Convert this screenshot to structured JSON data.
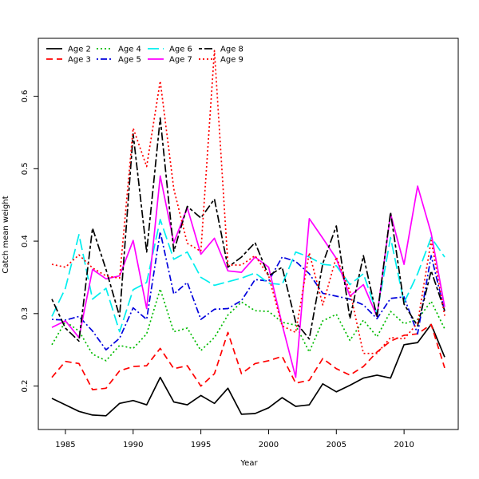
{
  "chart_data": {
    "type": "line",
    "title": "",
    "xlabel": "Year",
    "ylabel": "Catch mean weight",
    "xlim": [
      1983,
      2014
    ],
    "ylim": [
      0.14,
      0.68
    ],
    "xticks": [
      1985,
      1990,
      1995,
      2000,
      2005,
      2010
    ],
    "yticks": [
      0.2,
      0.3,
      0.4,
      0.5,
      0.6
    ],
    "legend_position": "top-left",
    "x": [
      1984,
      1985,
      1986,
      1987,
      1988,
      1989,
      1990,
      1991,
      1992,
      1993,
      1994,
      1995,
      1996,
      1997,
      1998,
      1999,
      2000,
      2001,
      2002,
      2003,
      2004,
      2005,
      2006,
      2007,
      2008,
      2009,
      2010,
      2011,
      2012,
      2013
    ],
    "series": [
      {
        "name": "Age 2",
        "color": "#000000",
        "dash": "solid",
        "values": [
          0.183,
          0.174,
          0.165,
          0.16,
          0.159,
          0.176,
          0.18,
          0.174,
          0.212,
          0.178,
          0.174,
          0.187,
          0.176,
          0.197,
          0.161,
          0.162,
          0.17,
          0.184,
          0.172,
          0.174,
          0.203,
          0.192,
          0.201,
          0.211,
          0.215,
          0.211,
          0.257,
          0.26,
          0.285,
          0.24
        ]
      },
      {
        "name": "Age 3",
        "color": "#ff0000",
        "dash": "dashed",
        "values": [
          0.212,
          0.234,
          0.231,
          0.195,
          0.197,
          0.221,
          0.227,
          0.228,
          0.252,
          0.224,
          0.228,
          0.2,
          0.217,
          0.274,
          0.217,
          0.231,
          0.235,
          0.241,
          0.204,
          0.208,
          0.238,
          0.224,
          0.215,
          0.227,
          0.247,
          0.262,
          0.27,
          0.272,
          0.285,
          0.225
        ]
      },
      {
        "name": "Age 4",
        "color": "#00bb00",
        "dash": "dotted",
        "values": [
          0.257,
          0.289,
          0.276,
          0.244,
          0.235,
          0.256,
          0.252,
          0.272,
          0.334,
          0.275,
          0.28,
          0.249,
          0.267,
          0.298,
          0.316,
          0.304,
          0.303,
          0.288,
          0.284,
          0.247,
          0.29,
          0.299,
          0.263,
          0.291,
          0.268,
          0.303,
          0.286,
          0.292,
          0.317,
          0.279
        ]
      },
      {
        "name": "Age 5",
        "color": "#0000dd",
        "dash": "dotdash",
        "values": [
          0.292,
          0.291,
          0.296,
          0.276,
          0.25,
          0.266,
          0.308,
          0.292,
          0.413,
          0.327,
          0.343,
          0.292,
          0.306,
          0.307,
          0.318,
          0.347,
          0.345,
          0.378,
          0.372,
          0.355,
          0.328,
          0.324,
          0.32,
          0.312,
          0.293,
          0.321,
          0.323,
          0.272,
          0.38,
          0.303
        ]
      },
      {
        "name": "Age 6",
        "color": "#00eeee",
        "dash": "longdash",
        "values": [
          0.296,
          0.335,
          0.409,
          0.32,
          0.335,
          0.275,
          0.333,
          0.343,
          0.43,
          0.375,
          0.385,
          0.35,
          0.339,
          0.344,
          0.349,
          0.356,
          0.342,
          0.34,
          0.385,
          0.378,
          0.368,
          0.366,
          0.34,
          0.355,
          0.3,
          0.405,
          0.315,
          0.355,
          0.405,
          0.378
        ]
      },
      {
        "name": "Age 7",
        "color": "#ff00ff",
        "dash": "solid",
        "values": [
          0.281,
          0.29,
          0.267,
          0.361,
          0.348,
          0.352,
          0.401,
          0.307,
          0.49,
          0.398,
          0.446,
          0.382,
          0.404,
          0.359,
          0.357,
          0.378,
          0.364,
          0.285,
          0.212,
          0.431,
          0.404,
          0.376,
          0.324,
          0.34,
          0.296,
          0.438,
          0.368,
          0.476,
          0.411,
          0.309
        ]
      },
      {
        "name": "Age 8",
        "color": "#000000",
        "dash": "twodash",
        "values": [
          0.32,
          0.28,
          0.262,
          0.418,
          0.361,
          0.296,
          0.548,
          0.385,
          0.57,
          0.386,
          0.448,
          0.432,
          0.458,
          0.364,
          0.378,
          0.398,
          0.352,
          0.364,
          0.288,
          0.265,
          0.369,
          0.421,
          0.293,
          0.38,
          0.295,
          0.44,
          0.313,
          0.283,
          0.359,
          0.304
        ]
      },
      {
        "name": "Age 9",
        "color": "#ff0000",
        "dash": "dotted",
        "values": [
          0.368,
          0.364,
          0.381,
          0.363,
          0.352,
          0.349,
          0.556,
          0.503,
          0.621,
          0.472,
          0.397,
          0.386,
          0.663,
          0.367,
          0.367,
          0.38,
          0.352,
          0.283,
          0.274,
          0.384,
          0.312,
          0.378,
          0.331,
          0.245,
          0.245,
          0.267,
          0.265,
          0.287,
          0.401,
          0.297
        ]
      }
    ]
  }
}
